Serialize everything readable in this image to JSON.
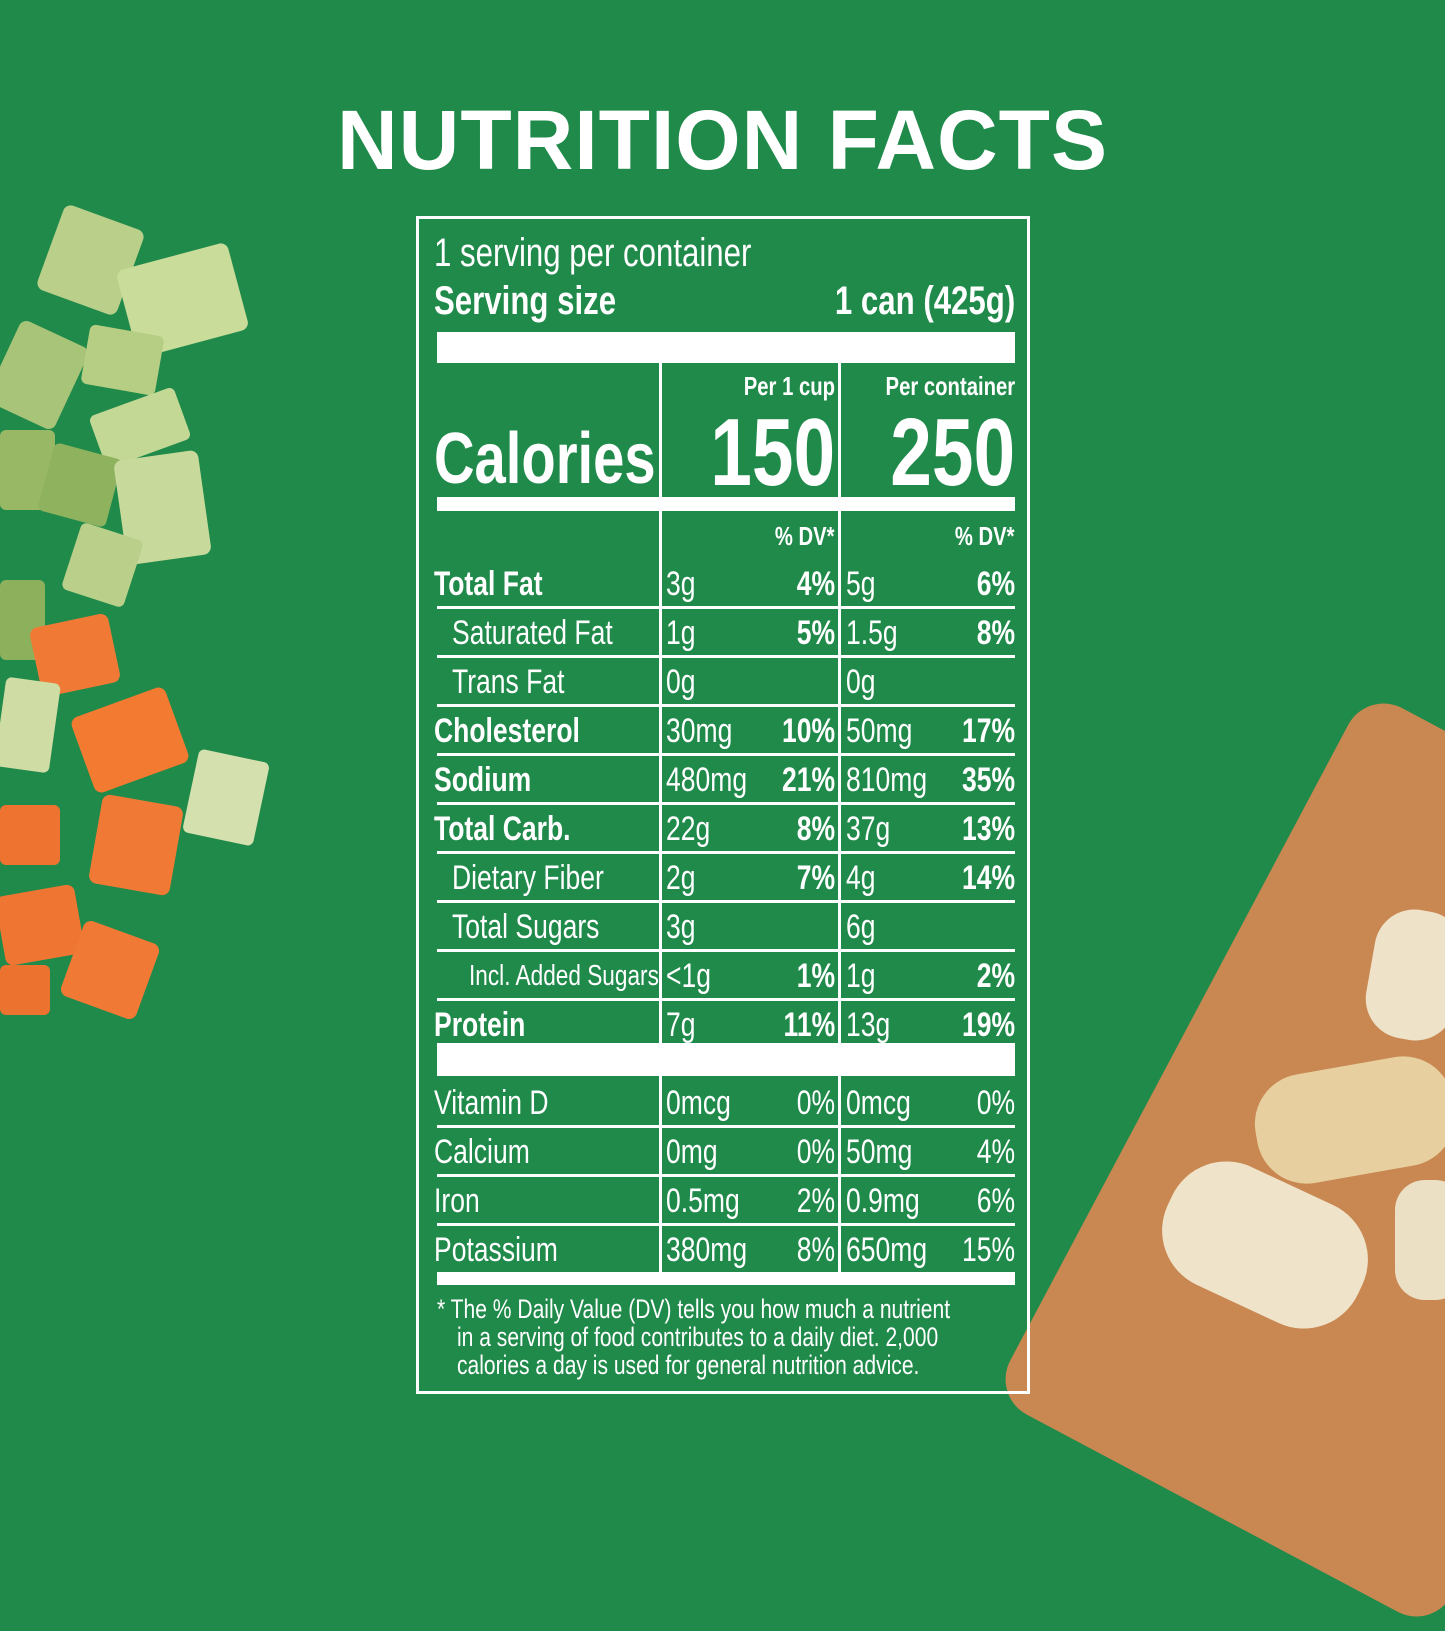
{
  "title": "NUTRITION FACTS",
  "colors": {
    "background": "#1f8a4a",
    "text": "#ffffff"
  },
  "servings": "1 serving per container",
  "serving_size_label": "Serving size",
  "serving_size_value": "1 can (425g)",
  "per_cup_label": "Per 1 cup",
  "per_container_label": "Per container",
  "calories_label": "Calories",
  "calories_per_cup": "150",
  "calories_per_container": "250",
  "dv_header": "% DV*",
  "nutrients": [
    {
      "name": "Total Fat",
      "bold": true,
      "indent": 0,
      "cup": "3g",
      "cup_dv": "4%",
      "cont": "5g",
      "cont_dv": "6%"
    },
    {
      "name": "Saturated Fat",
      "bold": false,
      "indent": 1,
      "cup": "1g",
      "cup_dv": "5%",
      "cont": "1.5g",
      "cont_dv": "8%"
    },
    {
      "name": "Trans Fat",
      "bold": false,
      "indent": 1,
      "cup": "0g",
      "cup_dv": "",
      "cont": "0g",
      "cont_dv": ""
    },
    {
      "name": "Cholesterol",
      "bold": true,
      "indent": 0,
      "cup": "30mg",
      "cup_dv": "10%",
      "cont": "50mg",
      "cont_dv": "17%"
    },
    {
      "name": "Sodium",
      "bold": true,
      "indent": 0,
      "cup": "480mg",
      "cup_dv": "21%",
      "cont": "810mg",
      "cont_dv": "35%"
    },
    {
      "name": "Total Carb.",
      "bold": true,
      "indent": 0,
      "cup": "22g",
      "cup_dv": "8%",
      "cont": "37g",
      "cont_dv": "13%"
    },
    {
      "name": "Dietary Fiber",
      "bold": false,
      "indent": 1,
      "cup": "2g",
      "cup_dv": "7%",
      "cont": "4g",
      "cont_dv": "14%"
    },
    {
      "name": "Total Sugars",
      "bold": false,
      "indent": 1,
      "cup": "3g",
      "cup_dv": "",
      "cont": "6g",
      "cont_dv": ""
    },
    {
      "name": "Incl. Added Sugars",
      "bold": false,
      "indent": 2,
      "cup": "<1g",
      "cup_dv": "1%",
      "cont": "1g",
      "cont_dv": "2%"
    },
    {
      "name": "Protein",
      "bold": true,
      "indent": 0,
      "cup": "7g",
      "cup_dv": "11%",
      "cont": "13g",
      "cont_dv": "19%"
    }
  ],
  "vitamins": [
    {
      "name": "Vitamin D",
      "cup": "0mcg",
      "cup_dv": "0%",
      "cont": "0mcg",
      "cont_dv": "0%"
    },
    {
      "name": "Calcium",
      "cup": "0mg",
      "cup_dv": "0%",
      "cont": "50mg",
      "cont_dv": "4%"
    },
    {
      "name": "Iron",
      "cup": "0.5mg",
      "cup_dv": "2%",
      "cont": "0.9mg",
      "cont_dv": "6%"
    },
    {
      "name": "Potassium",
      "cup": "380mg",
      "cup_dv": "8%",
      "cont": "650mg",
      "cont_dv": "15%"
    }
  ],
  "footnote": [
    "* The % Daily Value (DV) tells you how much a nutrient",
    "in a serving of food contributes to a daily diet. 2,000",
    "calories a day is used for general nutrition advice."
  ]
}
